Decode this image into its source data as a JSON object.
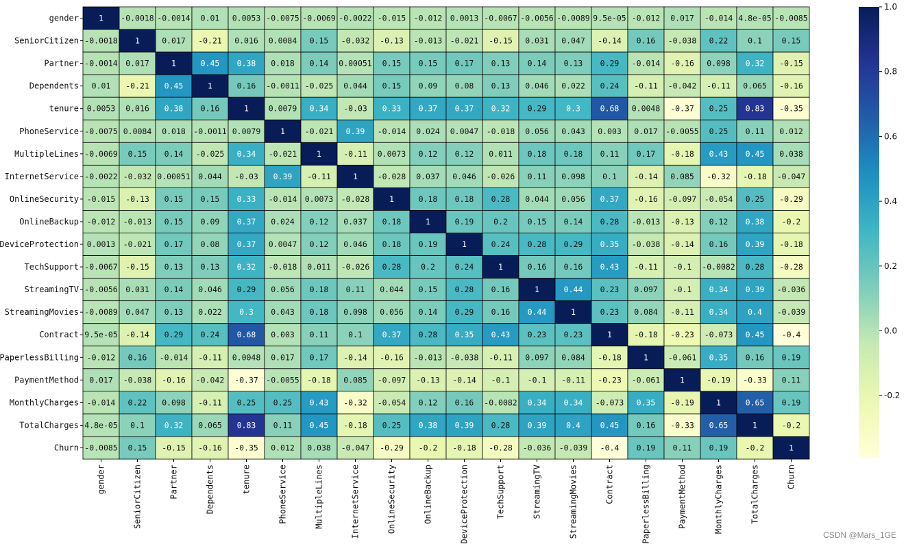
{
  "chart_data": {
    "type": "heatmap",
    "title": "",
    "xlabel": "",
    "ylabel": "",
    "colormap": "YlGnBu",
    "vmin": -0.3896,
    "vmax": 1.0,
    "labels": [
      "gender",
      "SeniorCitizen",
      "Partner",
      "Dependents",
      "tenure",
      "PhoneService",
      "MultipleLines",
      "InternetService",
      "OnlineSecurity",
      "OnlineBackup",
      "DeviceProtection",
      "TechSupport",
      "StreamingTV",
      "StreamingMovies",
      "Contract",
      "PaperlessBilling",
      "PaymentMethod",
      "MonthlyCharges",
      "TotalCharges",
      "Churn"
    ],
    "annotations": [
      [
        "1",
        "-0.0018",
        "-0.0014",
        "0.01",
        "0.0053",
        "-0.0075",
        "-0.0069",
        "-0.0022",
        "-0.015",
        "-0.012",
        "0.0013",
        "-0.0067",
        "-0.0056",
        "-0.0089",
        "9.5e-05",
        "-0.012",
        "0.017",
        "-0.014",
        "4.8e-05",
        "-0.0085"
      ],
      [
        "-0.0018",
        "1",
        "0.017",
        "-0.21",
        "0.016",
        "0.0084",
        "0.15",
        "-0.032",
        "-0.13",
        "-0.013",
        "-0.021",
        "-0.15",
        "0.031",
        "0.047",
        "-0.14",
        "0.16",
        "-0.038",
        "0.22",
        "0.1",
        "0.15"
      ],
      [
        "-0.0014",
        "0.017",
        "1",
        "0.45",
        "0.38",
        "0.018",
        "0.14",
        "0.00051",
        "0.15",
        "0.15",
        "0.17",
        "0.13",
        "0.14",
        "0.13",
        "0.29",
        "-0.014",
        "-0.16",
        "0.098",
        "0.32",
        "-0.15"
      ],
      [
        "0.01",
        "-0.21",
        "0.45",
        "1",
        "0.16",
        "-0.0011",
        "-0.025",
        "0.044",
        "0.15",
        "0.09",
        "0.08",
        "0.13",
        "0.046",
        "0.022",
        "0.24",
        "-0.11",
        "-0.042",
        "-0.11",
        "0.065",
        "-0.16"
      ],
      [
        "0.0053",
        "0.016",
        "0.38",
        "0.16",
        "1",
        "0.0079",
        "0.34",
        "-0.03",
        "0.33",
        "0.37",
        "0.37",
        "0.32",
        "0.29",
        "0.3",
        "0.68",
        "0.0048",
        "-0.37",
        "0.25",
        "0.83",
        "-0.35"
      ],
      [
        "-0.0075",
        "0.0084",
        "0.018",
        "-0.0011",
        "0.0079",
        "1",
        "-0.021",
        "0.39",
        "-0.014",
        "0.024",
        "0.0047",
        "-0.018",
        "0.056",
        "0.043",
        "0.003",
        "0.017",
        "-0.0055",
        "0.25",
        "0.11",
        "0.012"
      ],
      [
        "-0.0069",
        "0.15",
        "0.14",
        "-0.025",
        "0.34",
        "-0.021",
        "1",
        "-0.11",
        "0.0073",
        "0.12",
        "0.12",
        "0.011",
        "0.18",
        "0.18",
        "0.11",
        "0.17",
        "-0.18",
        "0.43",
        "0.45",
        "0.038"
      ],
      [
        "-0.0022",
        "-0.032",
        "0.00051",
        "0.044",
        "-0.03",
        "0.39",
        "-0.11",
        "1",
        "-0.028",
        "0.037",
        "0.046",
        "-0.026",
        "0.11",
        "0.098",
        "0.1",
        "-0.14",
        "0.085",
        "-0.32",
        "-0.18",
        "-0.047"
      ],
      [
        "-0.015",
        "-0.13",
        "0.15",
        "0.15",
        "0.33",
        "-0.014",
        "0.0073",
        "-0.028",
        "1",
        "0.18",
        "0.18",
        "0.28",
        "0.044",
        "0.056",
        "0.37",
        "-0.16",
        "-0.097",
        "-0.054",
        "0.25",
        "-0.29"
      ],
      [
        "-0.012",
        "-0.013",
        "0.15",
        "0.09",
        "0.37",
        "0.024",
        "0.12",
        "0.037",
        "0.18",
        "1",
        "0.19",
        "0.2",
        "0.15",
        "0.14",
        "0.28",
        "-0.013",
        "-0.13",
        "0.12",
        "0.38",
        "-0.2"
      ],
      [
        "0.0013",
        "-0.021",
        "0.17",
        "0.08",
        "0.37",
        "0.0047",
        "0.12",
        "0.046",
        "0.18",
        "0.19",
        "1",
        "0.24",
        "0.28",
        "0.29",
        "0.35",
        "-0.038",
        "-0.14",
        "0.16",
        "0.39",
        "-0.18"
      ],
      [
        "-0.0067",
        "-0.15",
        "0.13",
        "0.13",
        "0.32",
        "-0.018",
        "0.011",
        "-0.026",
        "0.28",
        "0.2",
        "0.24",
        "1",
        "0.16",
        "0.16",
        "0.43",
        "-0.11",
        "-0.1",
        "-0.0082",
        "0.28",
        "-0.28"
      ],
      [
        "-0.0056",
        "0.031",
        "0.14",
        "0.046",
        "0.29",
        "0.056",
        "0.18",
        "0.11",
        "0.044",
        "0.15",
        "0.28",
        "0.16",
        "1",
        "0.44",
        "0.23",
        "0.097",
        "-0.1",
        "0.34",
        "0.39",
        "-0.036"
      ],
      [
        "-0.0089",
        "0.047",
        "0.13",
        "0.022",
        "0.3",
        "0.043",
        "0.18",
        "0.098",
        "0.056",
        "0.14",
        "0.29",
        "0.16",
        "0.44",
        "1",
        "0.23",
        "0.084",
        "-0.11",
        "0.34",
        "0.4",
        "-0.039"
      ],
      [
        "9.5e-05",
        "-0.14",
        "0.29",
        "0.24",
        "0.68",
        "0.003",
        "0.11",
        "0.1",
        "0.37",
        "0.28",
        "0.35",
        "0.43",
        "0.23",
        "0.23",
        "1",
        "-0.18",
        "-0.23",
        "-0.073",
        "0.45",
        "-0.4"
      ],
      [
        "-0.012",
        "0.16",
        "-0.014",
        "-0.11",
        "0.0048",
        "0.017",
        "0.17",
        "-0.14",
        "-0.16",
        "-0.013",
        "-0.038",
        "-0.11",
        "0.097",
        "0.084",
        "-0.18",
        "1",
        "-0.061",
        "0.35",
        "0.16",
        "0.19"
      ],
      [
        "0.017",
        "-0.038",
        "-0.16",
        "-0.042",
        "-0.37",
        "-0.0055",
        "-0.18",
        "0.085",
        "-0.097",
        "-0.13",
        "-0.14",
        "-0.1",
        "-0.1",
        "-0.11",
        "-0.23",
        "-0.061",
        "1",
        "-0.19",
        "-0.33",
        "0.11"
      ],
      [
        "-0.014",
        "0.22",
        "0.098",
        "-0.11",
        "0.25",
        "0.25",
        "0.43",
        "-0.32",
        "-0.054",
        "0.12",
        "0.16",
        "-0.0082",
        "0.34",
        "0.34",
        "-0.073",
        "0.35",
        "-0.19",
        "1",
        "0.65",
        "0.19"
      ],
      [
        "4.8e-05",
        "0.1",
        "0.32",
        "0.065",
        "0.83",
        "0.11",
        "0.45",
        "-0.18",
        "0.25",
        "0.38",
        "0.39",
        "0.28",
        "0.39",
        "0.4",
        "0.45",
        "0.16",
        "-0.33",
        "0.65",
        "1",
        "-0.2"
      ],
      [
        "-0.0085",
        "0.15",
        "-0.15",
        "-0.16",
        "-0.35",
        "0.012",
        "0.038",
        "-0.047",
        "-0.29",
        "-0.2",
        "-0.18",
        "-0.28",
        "-0.036",
        "-0.039",
        "-0.4",
        "0.19",
        "0.11",
        "0.19",
        "-0.2",
        "1"
      ]
    ],
    "colorbar_ticks": [
      -0.2,
      0.0,
      0.2,
      0.4,
      0.6,
      0.8,
      1.0
    ],
    "colorbar_tick_labels": [
      "-0.2",
      "0.0",
      "0.2",
      "0.4",
      "0.6",
      "0.8",
      "1.0"
    ]
  },
  "watermark": "CSDN @Mars_1GE"
}
